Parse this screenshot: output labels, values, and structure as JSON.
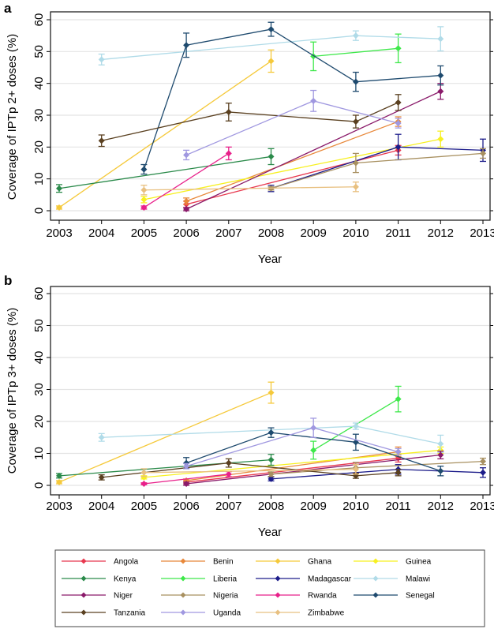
{
  "chart_data": [
    {
      "type": "line",
      "panel": "a",
      "xlabel": "Year",
      "ylabel": "Coverage of IPTp 2+ doses (%)",
      "xlim": [
        2003,
        2013
      ],
      "ylim": [
        0,
        60
      ],
      "xticks": [
        2003,
        2004,
        2005,
        2006,
        2007,
        2008,
        2009,
        2010,
        2011,
        2012,
        2013
      ],
      "yticks": [
        0,
        10,
        20,
        30,
        40,
        50,
        60
      ],
      "grid": "horizontal",
      "error_bars": true,
      "series": [
        {
          "name": "Angola",
          "x": [
            2006,
            2011
          ],
          "y": [
            2,
            19
          ],
          "err": [
            1,
            1.5
          ]
        },
        {
          "name": "Benin",
          "x": [
            2006,
            2011
          ],
          "y": [
            3,
            28
          ],
          "err": [
            1,
            1.5
          ]
        },
        {
          "name": "Ghana",
          "x": [
            2003,
            2008
          ],
          "y": [
            1,
            47
          ],
          "err": [
            0.5,
            3.5
          ]
        },
        {
          "name": "Guinea",
          "x": [
            2005,
            2012
          ],
          "y": [
            3.5,
            22.5
          ],
          "err": [
            1,
            2.5
          ]
        },
        {
          "name": "Kenya",
          "x": [
            2003,
            2008
          ],
          "y": [
            7,
            17
          ],
          "err": [
            1.2,
            2.5
          ]
        },
        {
          "name": "Liberia",
          "x": [
            2009,
            2011
          ],
          "y": [
            48.5,
            51
          ],
          "err": [
            4.5,
            4.5
          ]
        },
        {
          "name": "Madagascar",
          "x": [
            2008,
            2011,
            2013
          ],
          "y": [
            7,
            20,
            19
          ],
          "err": [
            1,
            4,
            3.5
          ]
        },
        {
          "name": "Malawi",
          "x": [
            2004,
            2010,
            2012
          ],
          "y": [
            47.5,
            55,
            54
          ],
          "err": [
            1.7,
            1.5,
            3.8
          ]
        },
        {
          "name": "Niger",
          "x": [
            2006,
            2012
          ],
          "y": [
            0.5,
            37.5
          ],
          "err": [
            0.5,
            2.5
          ]
        },
        {
          "name": "Nigeria",
          "x": [
            2008,
            2010,
            2013
          ],
          "y": [
            7,
            15,
            18
          ],
          "err": [
            0.5,
            3,
            1.5
          ]
        },
        {
          "name": "Rwanda",
          "x": [
            2005,
            2007
          ],
          "y": [
            1,
            18
          ],
          "err": [
            0.5,
            2
          ]
        },
        {
          "name": "Senegal",
          "x": [
            2005,
            2006,
            2008,
            2010,
            2012
          ],
          "y": [
            13,
            52,
            57,
            40.5,
            42.5
          ],
          "err": [
            1.5,
            3.8,
            2.2,
            3,
            3
          ]
        },
        {
          "name": "Tanzania",
          "x": [
            2004,
            2007,
            2010,
            2011
          ],
          "y": [
            22,
            31,
            28,
            34
          ],
          "err": [
            1.8,
            2.8,
            2,
            2.5
          ]
        },
        {
          "name": "Uganda",
          "x": [
            2006,
            2009,
            2011
          ],
          "y": [
            17.5,
            34.5,
            27.5
          ],
          "err": [
            1.5,
            3.3,
            1.5
          ]
        },
        {
          "name": "Zimbabwe",
          "x": [
            2005,
            2010
          ],
          "y": [
            6.5,
            7.5
          ],
          "err": [
            1.5,
            1.5
          ]
        }
      ]
    },
    {
      "type": "line",
      "panel": "b",
      "xlabel": "Year",
      "ylabel": "Coverage of IPTp 3+ doses (%)",
      "xlim": [
        2003,
        2013
      ],
      "ylim": [
        0,
        60
      ],
      "xticks": [
        2003,
        2004,
        2005,
        2006,
        2007,
        2008,
        2009,
        2010,
        2011,
        2012,
        2013
      ],
      "yticks": [
        0,
        10,
        20,
        30,
        40,
        50,
        60
      ],
      "grid": "horizontal",
      "error_bars": true,
      "series": [
        {
          "name": "Angola",
          "x": [
            2006,
            2011
          ],
          "y": [
            1,
            8.5
          ],
          "err": [
            0.5,
            1.2
          ]
        },
        {
          "name": "Benin",
          "x": [
            2006,
            2011
          ],
          "y": [
            1.5,
            10.5
          ],
          "err": [
            0.5,
            1.5
          ]
        },
        {
          "name": "Ghana",
          "x": [
            2003,
            2008
          ],
          "y": [
            1,
            29
          ],
          "err": [
            0.5,
            3.3
          ]
        },
        {
          "name": "Guinea",
          "x": [
            2005,
            2012
          ],
          "y": [
            2.5,
            11
          ],
          "err": [
            0.5,
            1
          ]
        },
        {
          "name": "Kenya",
          "x": [
            2003,
            2008
          ],
          "y": [
            3,
            8
          ],
          "err": [
            0.7,
            1.7
          ]
        },
        {
          "name": "Liberia",
          "x": [
            2009,
            2011
          ],
          "y": [
            11,
            27
          ],
          "err": [
            2.8,
            4
          ]
        },
        {
          "name": "Madagascar",
          "x": [
            2008,
            2011,
            2013
          ],
          "y": [
            2,
            5,
            4
          ],
          "err": [
            0.6,
            1.5,
            1.5
          ]
        },
        {
          "name": "Malawi",
          "x": [
            2004,
            2010,
            2012
          ],
          "y": [
            15,
            18.5,
            13
          ],
          "err": [
            1.2,
            1,
            2.7
          ]
        },
        {
          "name": "Niger",
          "x": [
            2006,
            2012
          ],
          "y": [
            0.5,
            9.5
          ],
          "err": [
            0.5,
            1.2
          ]
        },
        {
          "name": "Nigeria",
          "x": [
            2008,
            2010,
            2013
          ],
          "y": [
            3.5,
            5.5,
            7.5
          ],
          "err": [
            0.7,
            1.7,
            1
          ]
        },
        {
          "name": "Rwanda",
          "x": [
            2005,
            2007
          ],
          "y": [
            0.5,
            3.5
          ],
          "err": [
            0.3,
            0.8
          ]
        },
        {
          "name": "Senegal",
          "x": [
            2006,
            2008,
            2010,
            2012
          ],
          "y": [
            7,
            16.5,
            13.5,
            4.5
          ],
          "err": [
            1.7,
            1.5,
            2.5,
            1.5
          ]
        },
        {
          "name": "Tanzania",
          "x": [
            2004,
            2007,
            2010,
            2011
          ],
          "y": [
            2.5,
            7,
            3,
            4
          ],
          "err": [
            0.8,
            1.3,
            0.8,
            1
          ]
        },
        {
          "name": "Uganda",
          "x": [
            2006,
            2009,
            2011
          ],
          "y": [
            6,
            18,
            10.5
          ],
          "err": [
            0.8,
            3,
            1
          ]
        },
        {
          "name": "Zimbabwe",
          "x": [
            2005,
            2010
          ],
          "y": [
            4,
            5
          ],
          "err": [
            1.2,
            1.5
          ]
        }
      ]
    }
  ],
  "panels": [
    {
      "letter": "a",
      "ylabel": "Coverage of IPTp 2+ doses (%)",
      "xlabel": "Year"
    },
    {
      "letter": "b",
      "ylabel": "Coverage of IPTp 3+ doses (%)",
      "xlabel": "Year"
    }
  ],
  "legend": {
    "position": "bottom",
    "columns": 4,
    "entries": [
      {
        "name": "Angola",
        "color": "#e8384f"
      },
      {
        "name": "Benin",
        "color": "#e8883a"
      },
      {
        "name": "Ghana",
        "color": "#f5c93a"
      },
      {
        "name": "Guinea",
        "color": "#f7f020"
      },
      {
        "name": "Kenya",
        "color": "#2a8a4a"
      },
      {
        "name": "Liberia",
        "color": "#3ee84a"
      },
      {
        "name": "Madagascar",
        "color": "#1c1c8a"
      },
      {
        "name": "Malawi",
        "color": "#b0dbe8"
      },
      {
        "name": "Niger",
        "color": "#8a1a6a"
      },
      {
        "name": "Nigeria",
        "color": "#a89060"
      },
      {
        "name": "Rwanda",
        "color": "#e8208a"
      },
      {
        "name": "Senegal",
        "color": "#1e4a6e"
      },
      {
        "name": "Tanzania",
        "color": "#5a4020"
      },
      {
        "name": "Uganda",
        "color": "#a098e0"
      },
      {
        "name": "Zimbabwe",
        "color": "#e8c080"
      }
    ]
  }
}
